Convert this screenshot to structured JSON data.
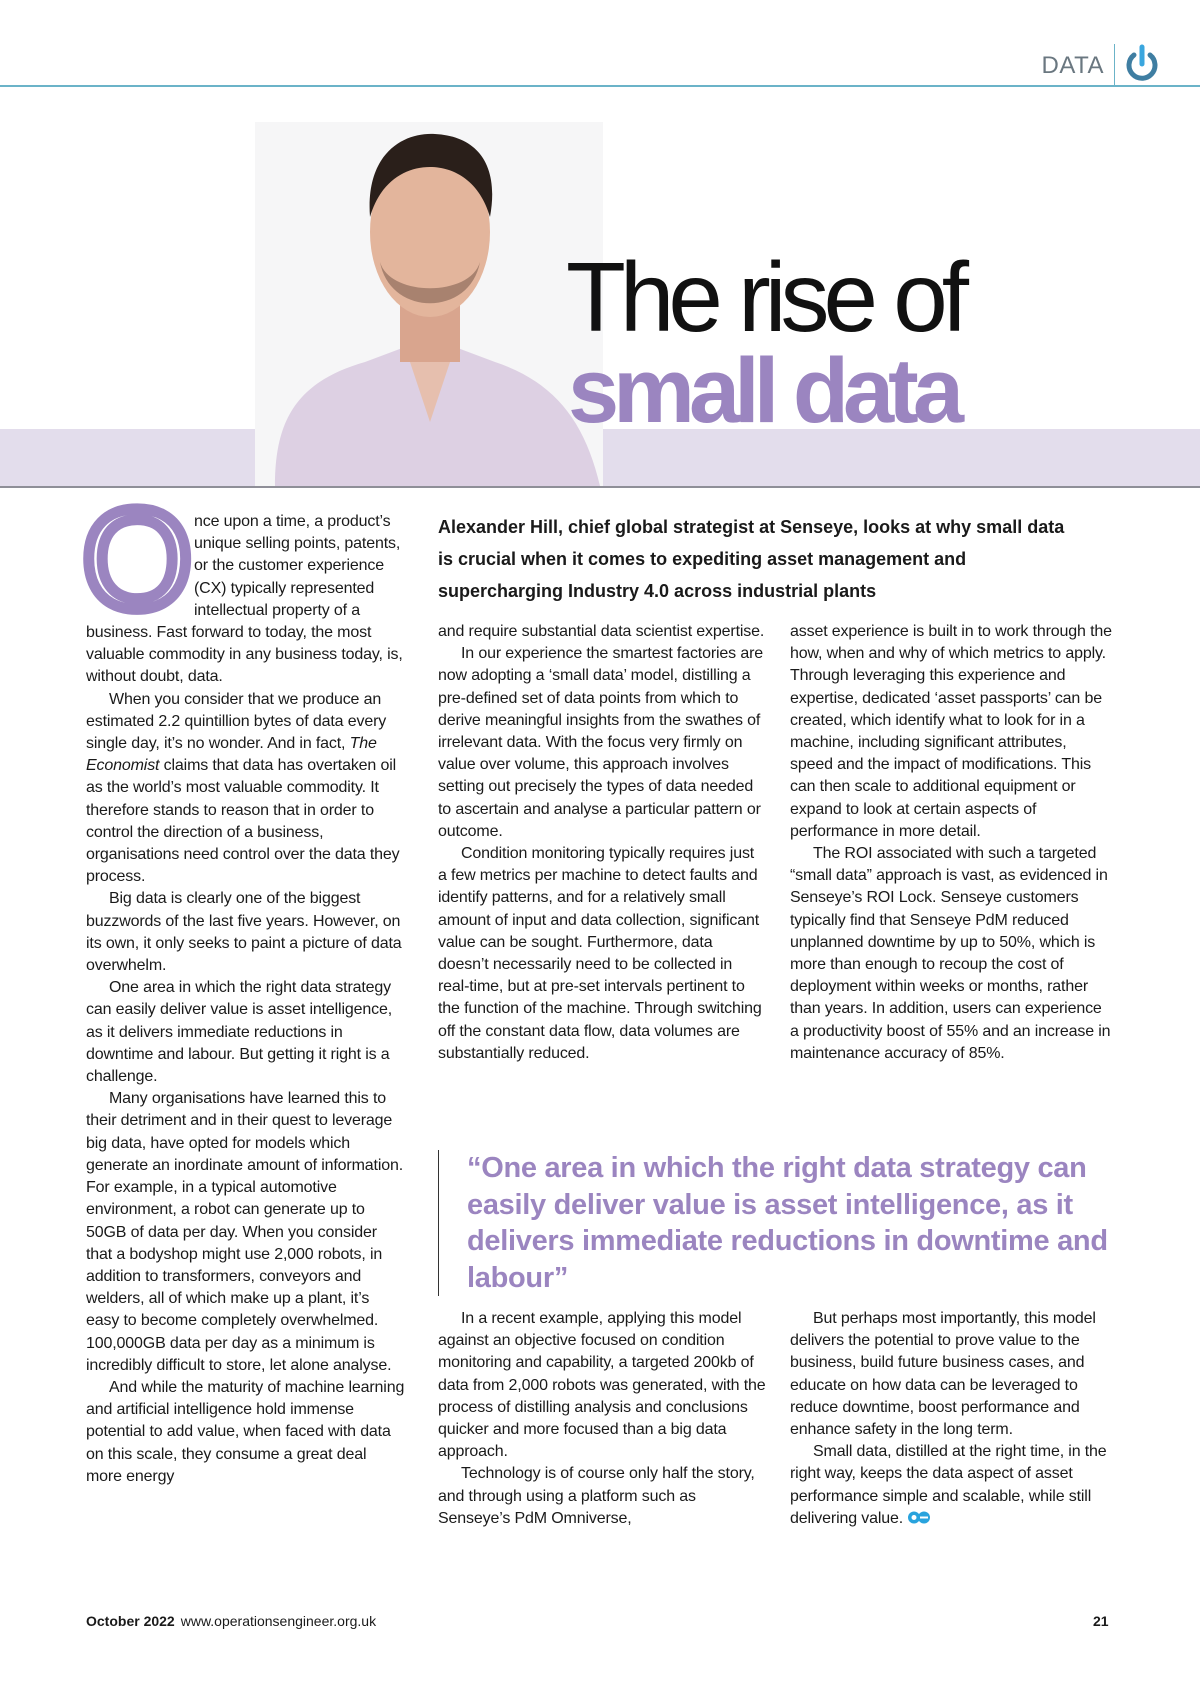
{
  "header": {
    "section": "DATA",
    "icon": "power-icon",
    "accent": "#6bb3c8"
  },
  "title": {
    "line1": "The rise of",
    "line2": "small data",
    "accent": "#9b85c0"
  },
  "standfirst": "Alexander Hill, chief global strategist at Senseye, looks at why small data is crucial when it comes to expediting asset management and supercharging Industry 4.0 across industrial plants",
  "col1": {
    "dropcap": "O",
    "p": [
      "nce upon a time, a product’s unique selling points, patents, or the customer experience (CX) typically represented intellectual property of a business. Fast forward to today, the most valuable commodity in any business today, is, without doubt, data.",
      "When you consider that we produce an estimated 2.2 quintillion bytes of data every single day, it’s no wonder. And in fact, ",
      "The Economist",
      " claims that data has overtaken oil as the world’s most valuable commodity. It therefore stands to reason that in order to control the direction of a business, organisations need control over the data they process.",
      "Big data is clearly one of the biggest buzzwords of the last five years. However, on its own, it only seeks to paint a picture of data overwhelm.",
      "One area in which the right data strategy can easily deliver value is asset intelligence, as it delivers immediate reductions in downtime and labour. But getting it right is a challenge.",
      "Many organisations have learned this to their detriment and in their quest to leverage big data, have opted for models which generate an inordinate amount of information. For example, in a typical automotive environment, a robot can generate up to 50GB of data per day. When you consider that a bodyshop might use 2,000 robots, in addition to transformers, conveyors and welders, all of which make up a plant, it’s easy to become completely overwhelmed. 100,000GB data per day as a minimum is incredibly difficult to store, let alone analyse.",
      "And while the maturity of machine learning and artificial intelligence hold immense potential to add value, when faced with data on this scale, they consume a great deal more energy"
    ]
  },
  "col2": {
    "p": [
      "and require substantial data scientist expertise.",
      "In our experience the smartest factories are now adopting a ‘small data’ model, distilling a pre-defined set of data points from which to derive meaningful insights from the swathes of irrelevant data. With the focus very firmly on value over volume, this approach involves setting out precisely the types of data needed to ascertain and analyse a particular pattern or outcome.",
      "Condition monitoring typically requires just a few metrics per machine to detect faults and identify patterns, and for a relatively small amount of input and data collection, significant value can be sought. Furthermore, data doesn’t necessarily need to be collected in real-time, but at pre-set intervals pertinent to the function of the machine. Through switching off the constant data flow, data volumes are substantially reduced."
    ]
  },
  "col3": {
    "p": [
      "asset experience is built in to work through the how, when and why of which metrics to apply. Through leveraging this experience and expertise, dedicated ‘asset passports’ can be created, which identify what to look for in a machine, including significant attributes, speed and the impact of modifications. This can then scale to additional equipment or expand to look at certain aspects of performance in more detail.",
      "The ROI associated with such a targeted “small data” approach is vast, as evidenced in Senseye’s ROI Lock. Senseye customers typically find that Senseye PdM reduced unplanned downtime by up to 50%, which is more than enough to recoup the cost of deployment within weeks or months, rather than years. In addition, users can experience a productivity boost of 55% and an increase in maintenance accuracy of 85%."
    ]
  },
  "pullquote": "“One area in which the right data strategy can easily deliver value is asset intelligence, as it delivers immediate reductions in downtime and labour”",
  "col2b": {
    "p": [
      "In a recent example, applying this model against an objective focused on condition monitoring and capability, a targeted 200kb of data from 2,000 robots was generated, with the process of distilling analysis and conclusions quicker and more focused than a big data approach.",
      "Technology is of course only half the story, and through using a platform such as Senseye’s PdM Omniverse,"
    ]
  },
  "col3b": {
    "p": [
      "But perhaps most importantly, this model delivers the potential to prove value to the business, build future business cases, and educate on how data can be leveraged to reduce downtime, boost performance and enhance safety in the long term.",
      "Small data, distilled at the right time, in the right way, keeps the data aspect of asset performance simple and scalable, while still delivering value."
    ],
    "endmark": "oe"
  },
  "footer": {
    "date": "October 2022",
    "url": "www.operationsengineer.org.uk",
    "page": "21"
  }
}
